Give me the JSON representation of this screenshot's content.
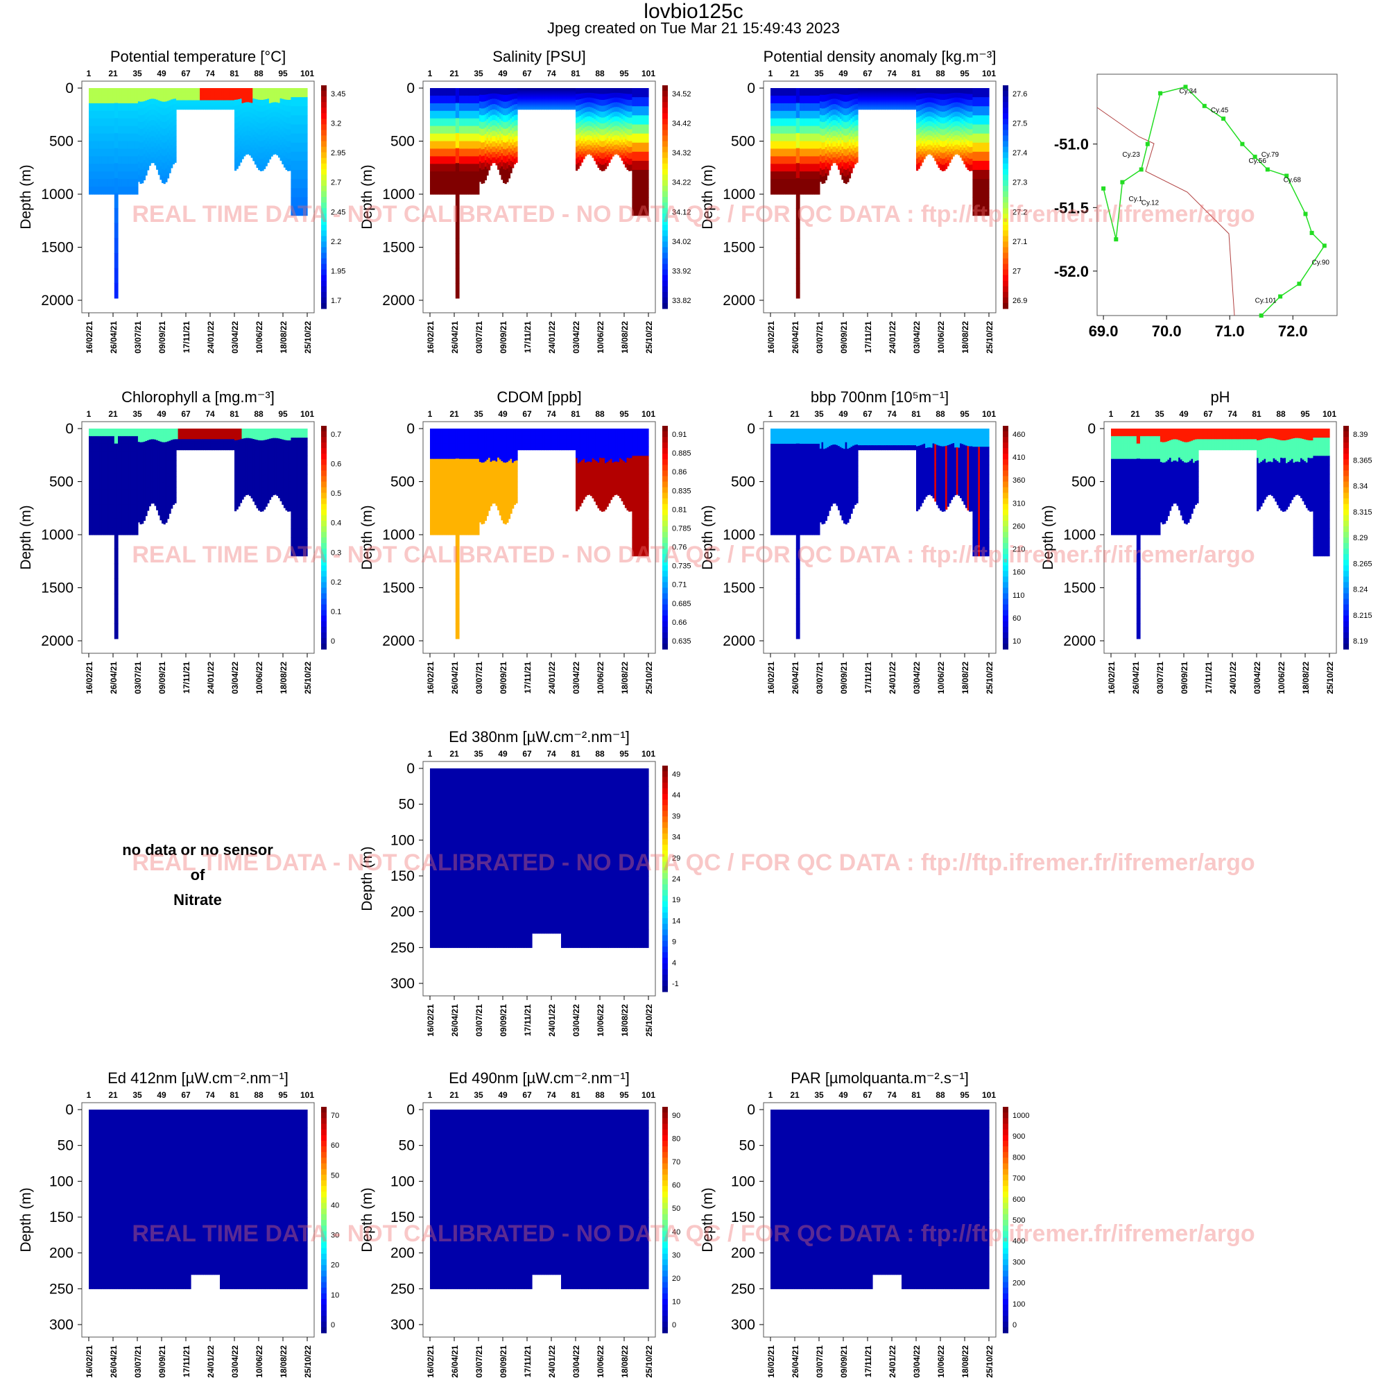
{
  "header": {
    "title": "lovbio125c",
    "subtitle": "Jpeg created on  Tue Mar 21 15:49:43 2023"
  },
  "watermark": "REAL TIME DATA - NOT CALIBRATED - NO DATA QC  /  FOR QC DATA : ftp://ftp.ifremer.fr/ifremer/argo",
  "no_data_panel": {
    "line1": "no data or no sensor",
    "line2": "of",
    "line3": "Nitrate"
  },
  "chart_data": [
    {
      "id": "temp",
      "type": "heatmap",
      "title": "Potential temperature [°C]",
      "ylabel": "Depth (m)",
      "ylim": [
        0,
        2000
      ],
      "yticks": [
        0,
        500,
        1000,
        1500,
        2000
      ],
      "top_ticks": [
        "1",
        "21",
        "35",
        "49",
        "67",
        "74",
        "81",
        "88",
        "95",
        "101"
      ],
      "x_ticks": [
        "16/02/21",
        "26/04/21",
        "03/07/21",
        "09/09/21",
        "17/11/21",
        "24/01/22",
        "03/04/22",
        "10/06/22",
        "18/08/22",
        "25/10/22"
      ],
      "colorbar": [
        "3.45",
        "3.2",
        "2.95",
        "2.7",
        "2.45",
        "2.2",
        "1.95",
        "1.7"
      ],
      "colormap": "jet"
    },
    {
      "id": "sal",
      "type": "heatmap",
      "title": "Salinity [PSU]",
      "ylabel": "Depth (m)",
      "ylim": [
        0,
        2000
      ],
      "yticks": [
        0,
        500,
        1000,
        1500,
        2000
      ],
      "top_ticks": [
        "1",
        "21",
        "35",
        "49",
        "67",
        "74",
        "81",
        "88",
        "95",
        "101"
      ],
      "x_ticks": [
        "16/02/21",
        "26/04/21",
        "03/07/21",
        "09/09/21",
        "17/11/21",
        "24/01/22",
        "03/04/22",
        "10/06/22",
        "18/08/22",
        "25/10/22"
      ],
      "colorbar": [
        "34.52",
        "34.42",
        "34.32",
        "34.22",
        "34.12",
        "34.02",
        "33.92",
        "33.82"
      ],
      "colormap": "jet"
    },
    {
      "id": "dens",
      "type": "heatmap",
      "title": "Potential density anomaly [kg.m⁻³]",
      "ylabel": "Depth (m)",
      "ylim": [
        0,
        2000
      ],
      "yticks": [
        0,
        500,
        1000,
        1500,
        2000
      ],
      "top_ticks": [
        "1",
        "21",
        "35",
        "49",
        "67",
        "74",
        "81",
        "88",
        "95",
        "101"
      ],
      "x_ticks": [
        "16/02/21",
        "26/04/21",
        "03/07/21",
        "09/09/21",
        "17/11/21",
        "24/01/22",
        "03/04/22",
        "10/06/22",
        "18/08/22",
        "25/10/22"
      ],
      "colorbar": [
        "27.6",
        "27.5",
        "27.4",
        "27.3",
        "27.2",
        "27.1",
        "27",
        "26.9"
      ],
      "colormap": "jet_reversed"
    },
    {
      "id": "map",
      "type": "scatter",
      "xticks": [
        "69.0",
        "70.0",
        "71.0",
        "72.0"
      ],
      "yticks": [
        "-51.0",
        "-51.5",
        "-52.0"
      ],
      "xlim": [
        68.9,
        72.7
      ],
      "ylim": [
        -52.35,
        -50.45
      ],
      "labels": [
        "Cy.34",
        "Cy.45",
        "Cy.23",
        "Cy.56",
        "Cy.79",
        "Cy.68",
        "Cy.1",
        "Cy.12",
        "Cy.90",
        "Cy.101"
      ],
      "track_color": "#22dd22"
    },
    {
      "id": "chl",
      "type": "heatmap",
      "title": "Chlorophyll a [mg.m⁻³]",
      "ylabel": "Depth (m)",
      "ylim": [
        0,
        2000
      ],
      "yticks": [
        0,
        500,
        1000,
        1500,
        2000
      ],
      "top_ticks": [
        "1",
        "21",
        "35",
        "49",
        "67",
        "74",
        "81",
        "88",
        "95",
        "101"
      ],
      "x_ticks": [
        "16/02/21",
        "26/04/21",
        "03/07/21",
        "09/09/21",
        "17/11/21",
        "24/01/22",
        "03/04/22",
        "10/06/22",
        "18/08/22",
        "25/10/22"
      ],
      "colorbar": [
        "0.7",
        "0.6",
        "0.5",
        "0.4",
        "0.3",
        "0.2",
        "0.1",
        "0"
      ],
      "colormap": "jet"
    },
    {
      "id": "cdom",
      "type": "heatmap",
      "title": "CDOM  [ppb]",
      "ylabel": "Depth (m)",
      "ylim": [
        0,
        2000
      ],
      "yticks": [
        0,
        500,
        1000,
        1500,
        2000
      ],
      "top_ticks": [
        "1",
        "21",
        "35",
        "49",
        "67",
        "74",
        "81",
        "88",
        "95",
        "101"
      ],
      "x_ticks": [
        "16/02/21",
        "26/04/21",
        "03/07/21",
        "09/09/21",
        "17/11/21",
        "24/01/22",
        "03/04/22",
        "10/06/22",
        "18/08/22",
        "25/10/22"
      ],
      "colorbar": [
        "0.91",
        "0.885",
        "0.86",
        "0.835",
        "0.81",
        "0.785",
        "0.76",
        "0.735",
        "0.71",
        "0.685",
        "0.66",
        "0.635"
      ],
      "colormap": "jet"
    },
    {
      "id": "bbp",
      "type": "heatmap",
      "title": "bbp 700nm [10⁵m⁻¹]",
      "ylabel": "Depth (m)",
      "ylim": [
        0,
        2000
      ],
      "yticks": [
        0,
        500,
        1000,
        1500,
        2000
      ],
      "top_ticks": [
        "1",
        "21",
        "35",
        "49",
        "67",
        "74",
        "81",
        "88",
        "95",
        "101"
      ],
      "x_ticks": [
        "16/02/21",
        "26/04/21",
        "03/07/21",
        "09/09/21",
        "17/11/21",
        "24/01/22",
        "03/04/22",
        "10/06/22",
        "18/08/22",
        "25/10/22"
      ],
      "colorbar": [
        "460",
        "410",
        "360",
        "310",
        "260",
        "210",
        "160",
        "110",
        "60",
        "10"
      ],
      "colormap": "jet"
    },
    {
      "id": "ph",
      "type": "heatmap",
      "title": "pH",
      "ylabel": "Depth (m)",
      "ylim": [
        0,
        2000
      ],
      "yticks": [
        0,
        500,
        1000,
        1500,
        2000
      ],
      "top_ticks": [
        "1",
        "21",
        "35",
        "49",
        "67",
        "74",
        "81",
        "88",
        "95",
        "101"
      ],
      "x_ticks": [
        "16/02/21",
        "26/04/21",
        "03/07/21",
        "09/09/21",
        "17/11/21",
        "24/01/22",
        "03/04/22",
        "10/06/22",
        "18/08/22",
        "25/10/22"
      ],
      "colorbar": [
        "8.39",
        "8.365",
        "8.34",
        "8.315",
        "8.29",
        "8.265",
        "8.24",
        "8.215",
        "8.19"
      ],
      "colormap": "jet"
    },
    {
      "id": "ed380",
      "type": "heatmap",
      "title": "Ed 380nm [µW.cm⁻².nm⁻¹]",
      "ylabel": "Depth (m)",
      "ylim": [
        0,
        300
      ],
      "yticks": [
        0,
        50,
        100,
        150,
        200,
        250,
        300
      ],
      "top_ticks": [
        "1",
        "21",
        "35",
        "49",
        "67",
        "74",
        "81",
        "88",
        "95",
        "101"
      ],
      "x_ticks": [
        "16/02/21",
        "26/04/21",
        "03/07/21",
        "09/09/21",
        "17/11/21",
        "24/01/22",
        "03/04/22",
        "10/06/22",
        "18/08/22",
        "25/10/22"
      ],
      "colorbar": [
        "49",
        "44",
        "39",
        "34",
        "29",
        "24",
        "19",
        "14",
        "9",
        "4",
        "-1"
      ],
      "colormap": "jet"
    },
    {
      "id": "ed412",
      "type": "heatmap",
      "title": "Ed 412nm [µW.cm⁻².nm⁻¹]",
      "ylabel": "Depth (m)",
      "ylim": [
        0,
        300
      ],
      "yticks": [
        0,
        50,
        100,
        150,
        200,
        250,
        300
      ],
      "top_ticks": [
        "1",
        "21",
        "35",
        "49",
        "67",
        "74",
        "81",
        "88",
        "95",
        "101"
      ],
      "x_ticks": [
        "16/02/21",
        "26/04/21",
        "03/07/21",
        "09/09/21",
        "17/11/21",
        "24/01/22",
        "03/04/22",
        "10/06/22",
        "18/08/22",
        "25/10/22"
      ],
      "colorbar": [
        "70",
        "60",
        "50",
        "40",
        "30",
        "20",
        "10",
        "0"
      ],
      "colormap": "jet"
    },
    {
      "id": "ed490",
      "type": "heatmap",
      "title": "Ed 490nm [µW.cm⁻².nm⁻¹]",
      "ylabel": "Depth (m)",
      "ylim": [
        0,
        300
      ],
      "yticks": [
        0,
        50,
        100,
        150,
        200,
        250,
        300
      ],
      "top_ticks": [
        "1",
        "21",
        "35",
        "49",
        "67",
        "74",
        "81",
        "88",
        "95",
        "101"
      ],
      "x_ticks": [
        "16/02/21",
        "26/04/21",
        "03/07/21",
        "09/09/21",
        "17/11/21",
        "24/01/22",
        "03/04/22",
        "10/06/22",
        "18/08/22",
        "25/10/22"
      ],
      "colorbar": [
        "90",
        "80",
        "70",
        "60",
        "50",
        "40",
        "30",
        "20",
        "10",
        "0"
      ],
      "colormap": "jet"
    },
    {
      "id": "par",
      "type": "heatmap",
      "title": "PAR [µmolquanta.m⁻².s⁻¹]",
      "ylabel": "Depth (m)",
      "ylim": [
        0,
        300
      ],
      "yticks": [
        0,
        50,
        100,
        150,
        200,
        250,
        300
      ],
      "top_ticks": [
        "1",
        "21",
        "35",
        "49",
        "67",
        "74",
        "81",
        "88",
        "95",
        "101"
      ],
      "x_ticks": [
        "16/02/21",
        "26/04/21",
        "03/07/21",
        "09/09/21",
        "17/11/21",
        "24/01/22",
        "03/04/22",
        "10/06/22",
        "18/08/22",
        "25/10/22"
      ],
      "colorbar": [
        "1000",
        "900",
        "800",
        "700",
        "600",
        "500",
        "400",
        "300",
        "200",
        "100",
        "0"
      ],
      "colormap": "jet"
    }
  ]
}
